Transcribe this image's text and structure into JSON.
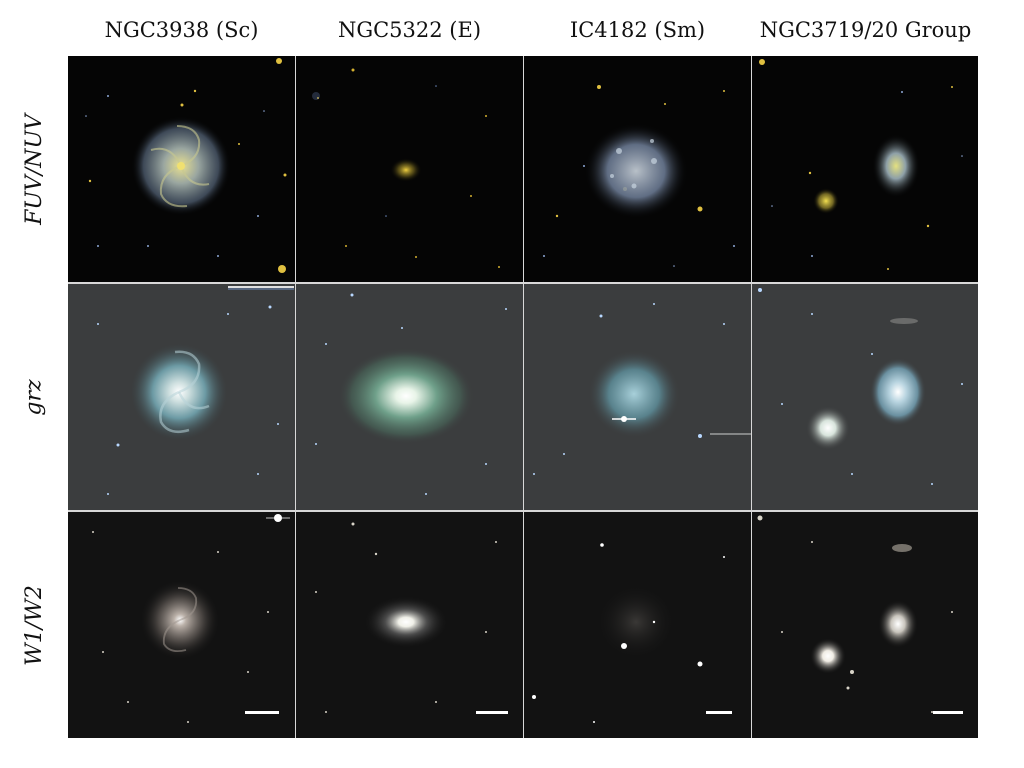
{
  "columns": [
    "NGC3938 (Sc)",
    "NGC5322 (E)",
    "IC4182 (Sm)",
    "NGC3719/20 Group"
  ],
  "rows": [
    "FUV/NUV",
    "grz",
    "W1/W2"
  ]
}
